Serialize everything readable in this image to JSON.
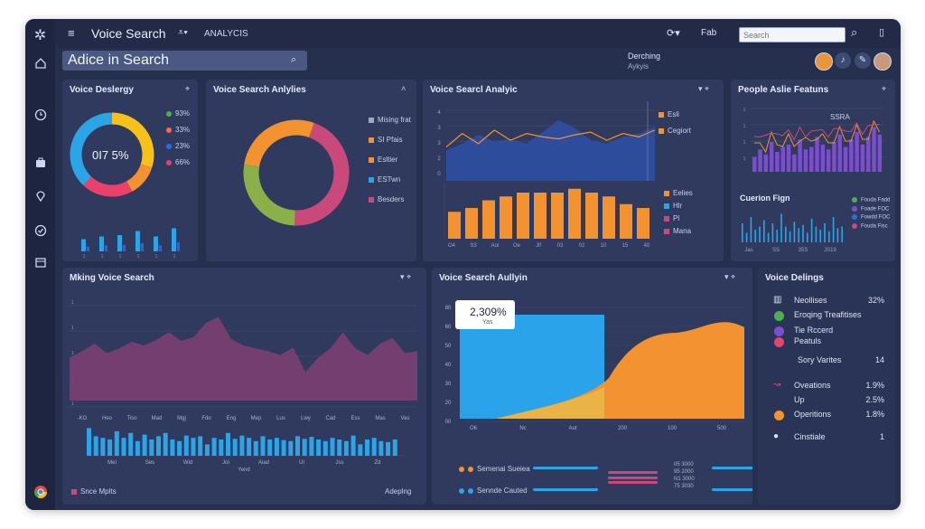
{
  "app": {
    "title": "Voice Search",
    "subtitle": "ANALYCIS"
  },
  "topbar": {
    "help_label": "Fab",
    "search_placeholder": "Search"
  },
  "header": {
    "title": "Adice in Search",
    "right_title": "Derching",
    "right_sub": "Aykyis"
  },
  "panels": {
    "p1": {
      "title": "Voice Deslergy",
      "center": "0I7 5%",
      "legend": [
        {
          "label": "93%",
          "color": "#4caf50"
        },
        {
          "label": "33%",
          "color": "#ff6b3d"
        },
        {
          "label": "23%",
          "color": "#2b6de0"
        },
        {
          "label": "66%",
          "color": "#e9416a"
        }
      ],
      "bars": [
        0.45,
        0.55,
        0.6,
        0.75,
        0.55,
        0.85
      ]
    },
    "p2": {
      "title": "Voice Search Anlylies",
      "legend": [
        {
          "label": "Mising frat",
          "color": "#a0a7bf"
        },
        {
          "label": "SI Pfais",
          "color": "#f39230"
        },
        {
          "label": "Esltier",
          "color": "#f39230"
        },
        {
          "label": "ESTwn",
          "color": "#2ba5e8"
        },
        {
          "label": "Besders",
          "color": "#c94a7a"
        }
      ]
    },
    "p3": {
      "title": "Voice Searcl Analyic",
      "legend": [
        {
          "label": "Esli",
          "color": "#f39230"
        },
        {
          "label": "Cegiort",
          "color": "#f39230"
        }
      ],
      "legend2": [
        {
          "label": "Eelies",
          "color": "#f39230"
        },
        {
          "label": "Hlr",
          "color": "#2ba5e8"
        },
        {
          "label": "Pl",
          "color": "#c94a7a"
        },
        {
          "label": "Mana",
          "color": "#c94a7a"
        }
      ],
      "y_ticks": [
        "4",
        "3",
        "3",
        "2",
        "0"
      ],
      "bar_x_ticks": [
        "O4",
        "S3",
        "Aol",
        "Oe",
        "Jlf",
        "03",
        "02",
        "10",
        "15",
        "40"
      ],
      "bar_values": [
        0.35,
        0.4,
        0.5,
        0.55,
        0.6,
        0.6,
        0.6,
        0.65,
        0.6,
        0.55,
        0.45,
        0.4
      ]
    },
    "p4": {
      "title": "People Aslie Featuns",
      "tag": "SSRA",
      "sub": "Cuerion Fign",
      "legend": [
        {
          "label": "Fouda Fadd",
          "color": "#4caf50"
        },
        {
          "label": "Foade FOC",
          "color": "#7c4dce"
        },
        {
          "label": "Fowdd FOC",
          "color": "#2b6de0"
        },
        {
          "label": "Fouda Fisc",
          "color": "#c94a7a"
        }
      ],
      "x_ticks": [
        "Jas",
        "SS",
        "35S",
        "JS19"
      ]
    },
    "p5": {
      "title": "Mking Voice Search",
      "footer_left": "Snce Mplts",
      "footer_right": "Adeplng",
      "x_ticks": [
        "-KO",
        "Heo",
        "Tiso",
        "Mad",
        "Mgj",
        "Fdo",
        "Eng",
        "Mep",
        "Lus",
        "Lwy",
        "Cad",
        "Ess",
        "Mas",
        "Vas"
      ],
      "bar_x_ticks": [
        "Mel",
        "Ses",
        "Wid",
        "Jol",
        "Aiad",
        "Ul",
        "Jss",
        "Zd"
      ],
      "bar_x_sub": "Yend"
    },
    "p6": {
      "title": "Voice Search Aullyin",
      "callout_value": "2,309%",
      "callout_sub": "Yas",
      "y_ticks": [
        "80",
        "60",
        "50",
        "40",
        "30",
        "20",
        "00"
      ],
      "x_ticks": [
        "O6",
        "Nc",
        "Aut",
        "200",
        "100",
        "500"
      ],
      "legend": [
        {
          "label": "Semenai Sueiea",
          "color": "#f39230"
        },
        {
          "label": "Sennde Cauted",
          "color": "#2ba5e8"
        }
      ],
      "mid_values": [
        "05 3000",
        "95 2000",
        "N1 3000",
        "75 3030"
      ]
    },
    "p7": {
      "title": "Voice Delings",
      "rows": [
        {
          "label": "Neollises",
          "value": "32%",
          "icon": "bar-chart-icon"
        },
        {
          "label": "Eroqing Treafitises",
          "value": "",
          "icon": "green-circle-icon"
        },
        {
          "label": "Tie Rccerd",
          "value": "",
          "icon": "purple-circle-icon"
        },
        {
          "label": "Peatuls",
          "value": "",
          "icon": "pink-circle-icon"
        },
        {
          "label": "Sory Varites",
          "value": "14",
          "icon": ""
        },
        {
          "label": "Oveations",
          "value": "1.9%",
          "icon": "trend-icon"
        },
        {
          "label": "Up",
          "value": "2.5%",
          "icon": ""
        },
        {
          "label": "Operitions",
          "value": "1.8%",
          "icon": "orange-circle-icon"
        },
        {
          "label": "Cinstiale",
          "value": "1",
          "icon": "user-icon"
        }
      ]
    }
  },
  "colors": {
    "bg": "#262f4d",
    "panel": "#2f3a5e",
    "accent_orange": "#f39230",
    "accent_blue": "#2ba5e8",
    "accent_pink": "#c94a7a",
    "accent_purple": "#7c4dce"
  }
}
